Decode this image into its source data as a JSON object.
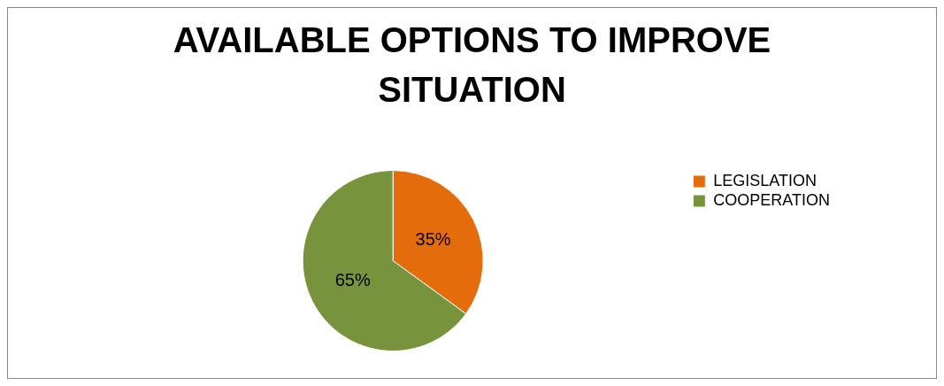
{
  "chart_data": {
    "type": "pie",
    "title": "AVAILABLE OPTIONS TO IMPROVE SITUATION",
    "categories": [
      "LEGISLATION",
      "COOPERATION"
    ],
    "values": [
      35,
      65
    ],
    "colors": [
      "#e46c0a",
      "#77933c"
    ],
    "value_labels": [
      "35%",
      "65%"
    ],
    "legend": "right"
  }
}
